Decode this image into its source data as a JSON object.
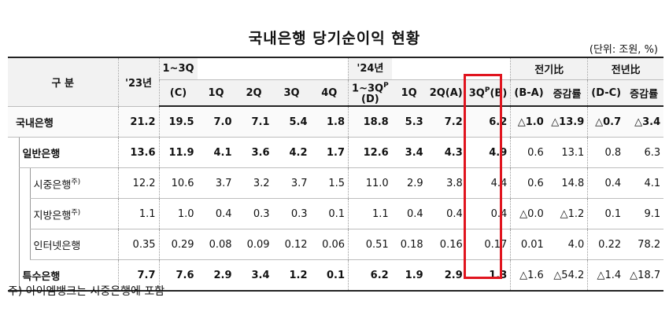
{
  "title": "국내은행 당기순이익 현황",
  "unit": "(단위: 조원, %)",
  "headers": {
    "gubun": "구 분",
    "y23": "'23년",
    "q123_c_top": "1~3Q",
    "q123_c_bottom": "(C)",
    "q1": "1Q",
    "q2": "2Q",
    "q3": "3Q",
    "q4": "4Q",
    "y24_top": "'24년",
    "y24_mid": "1~3Q",
    "y24_mid_sup": "P",
    "y24_bottom": "(D)",
    "q1b": "1Q",
    "q2a": "2Q(A)",
    "q3b_main": "3Q",
    "q3b_sup": "P",
    "q3b_tail": "(B)",
    "prevq": "전기比",
    "prevq_sub": "(B-A)",
    "prevq_rate": "증감률",
    "prevy": "전년比",
    "prevy_sub": "(D-C)",
    "prevy_rate": "증감률"
  },
  "rows": [
    {
      "label": "국내은행",
      "values": [
        "21.2",
        "19.5",
        "7.0",
        "7.1",
        "5.4",
        "1.8",
        "18.8",
        "5.3",
        "7.2",
        "6.2",
        "△1.0",
        "△13.9",
        "△0.7",
        "△3.4"
      ]
    },
    {
      "label": "일반은행",
      "values": [
        "13.6",
        "11.9",
        "4.1",
        "3.6",
        "4.2",
        "1.7",
        "12.6",
        "3.4",
        "4.3",
        "4.9",
        "0.6",
        "13.1",
        "0.8",
        "6.3"
      ]
    },
    {
      "label": "시중은행",
      "label_sup": "주)",
      "values": [
        "12.2",
        "10.6",
        "3.7",
        "3.2",
        "3.7",
        "1.5",
        "11.0",
        "2.9",
        "3.8",
        "4.4",
        "0.6",
        "14.8",
        "0.4",
        "4.1"
      ]
    },
    {
      "label": "지방은행",
      "label_sup": "주)",
      "values": [
        "1.1",
        "1.0",
        "0.4",
        "0.3",
        "0.3",
        "0.1",
        "1.1",
        "0.4",
        "0.4",
        "0.4",
        "△0.0",
        "△1.2",
        "0.1",
        "9.1"
      ]
    },
    {
      "label": "인터넷은행",
      "values": [
        "0.35",
        "0.29",
        "0.08",
        "0.09",
        "0.12",
        "0.06",
        "0.51",
        "0.18",
        "0.16",
        "0.17",
        "0.01",
        "4.0",
        "0.22",
        "78.2"
      ]
    },
    {
      "label": "특수은행",
      "values": [
        "7.7",
        "7.6",
        "2.9",
        "3.4",
        "1.2",
        "0.1",
        "6.2",
        "1.9",
        "2.9",
        "1.3",
        "△1.6",
        "△54.2",
        "△1.4",
        "△18.7"
      ]
    }
  ],
  "footnote": "주) 아이엠뱅크는 시중은행에 포함",
  "highlight_color": "#e0141e"
}
